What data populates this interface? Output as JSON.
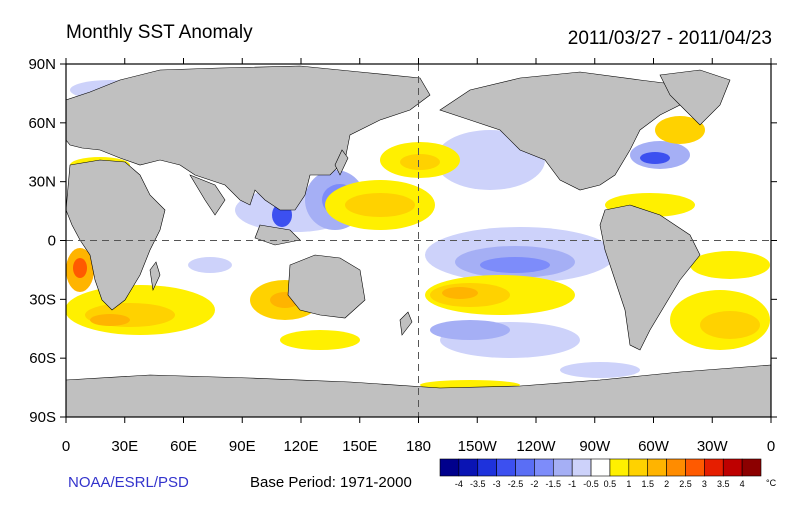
{
  "header": {
    "title": "Monthly SST Anomaly",
    "date_range": "2011/03/27 - 2011/04/23"
  },
  "footer": {
    "credit": "NOAA/ESRL/PSD",
    "base_period": "Base Period: 1971-2000"
  },
  "map": {
    "lat_ticks": [
      "90N",
      "60N",
      "30N",
      "0",
      "30S",
      "60S",
      "90S"
    ],
    "lon_ticks": [
      "0",
      "30E",
      "60E",
      "90E",
      "120E",
      "150E",
      "180",
      "150W",
      "120W",
      "90W",
      "60W",
      "30W",
      "0"
    ],
    "land_color": "#c0c0c0",
    "ocean_color": "#ffffff",
    "reference_lines": [
      "equator",
      "dateline"
    ]
  },
  "colorbar": {
    "unit": "°C",
    "labels": [
      "-4",
      "-3.5",
      "-3",
      "-2.5",
      "-2",
      "-1.5",
      "-1",
      "-0.5",
      "0.5",
      "1",
      "1.5",
      "2",
      "2.5",
      "3",
      "3.5",
      "4"
    ],
    "colors": [
      "#00008c",
      "#0a14b4",
      "#1e32dc",
      "#3c50f0",
      "#5a6ef5",
      "#7d8cfa",
      "#a5aff5",
      "#cdd2fa",
      "#ffffff",
      "#fff000",
      "#ffd200",
      "#ffb400",
      "#ff8c00",
      "#ff5a00",
      "#e61e00",
      "#be0000",
      "#8c0000"
    ]
  }
}
